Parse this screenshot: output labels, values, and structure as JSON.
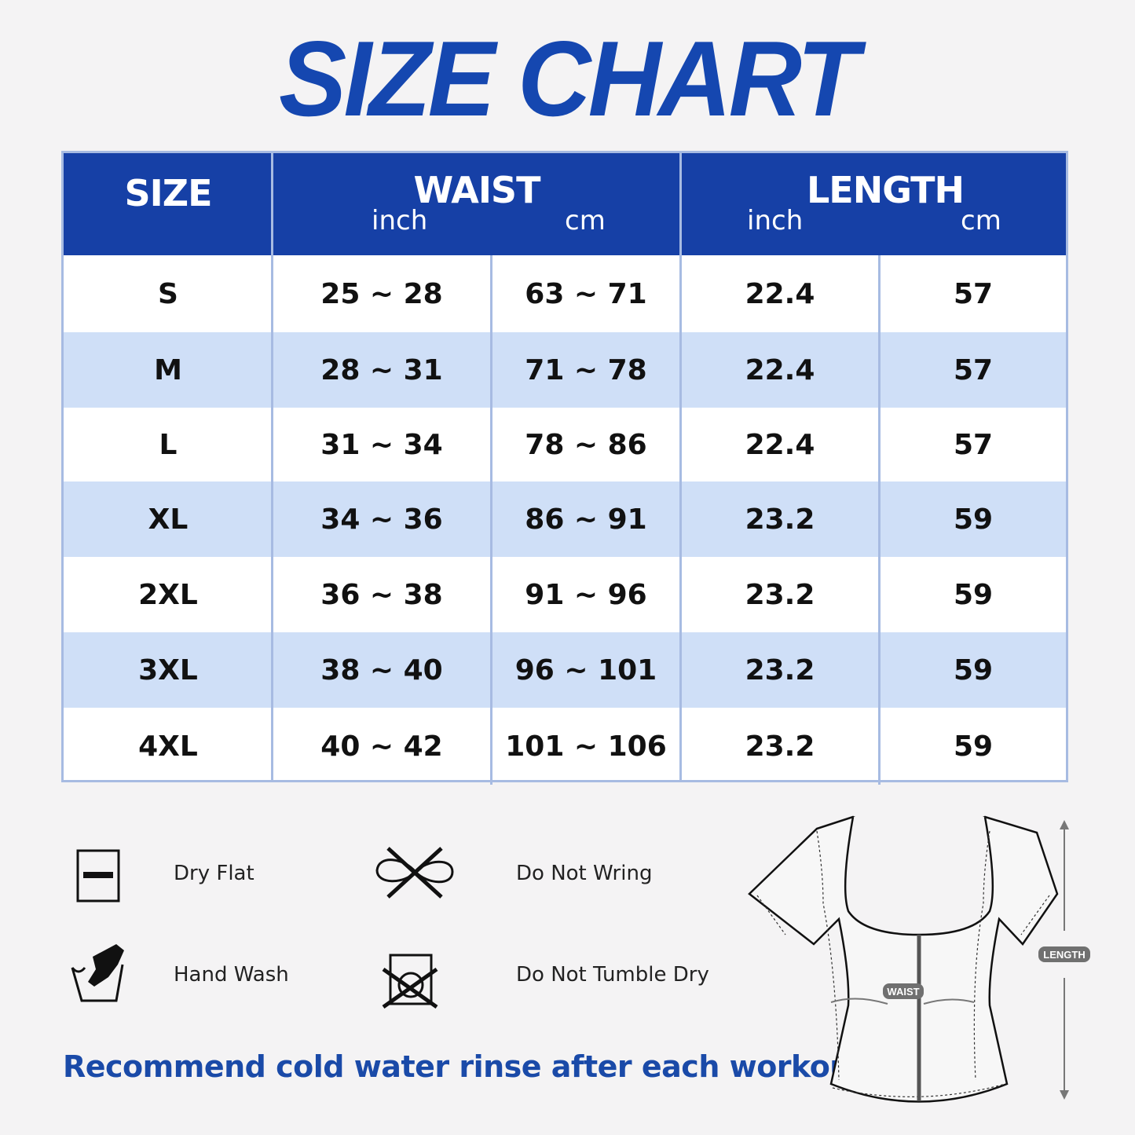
{
  "title": "SIZE CHART",
  "table": {
    "headers": {
      "size": "SIZE",
      "waist": "WAIST",
      "length": "LENGTH",
      "inch": "inch",
      "cm": "cm"
    },
    "rows": [
      {
        "size": "S",
        "waist_inch": "25 ~ 28",
        "waist_cm": "63 ~ 71",
        "length_inch": "22.4",
        "length_cm": "57"
      },
      {
        "size": "M",
        "waist_inch": "28 ~ 31",
        "waist_cm": "71 ~ 78",
        "length_inch": "22.4",
        "length_cm": "57"
      },
      {
        "size": "L",
        "waist_inch": "31 ~ 34",
        "waist_cm": "78 ~ 86",
        "length_inch": "22.4",
        "length_cm": "57"
      },
      {
        "size": "XL",
        "waist_inch": "34 ~ 36",
        "waist_cm": "86 ~ 91",
        "length_inch": "23.2",
        "length_cm": "59"
      },
      {
        "size": "2XL",
        "waist_inch": "36 ~ 38",
        "waist_cm": "91 ~ 96",
        "length_inch": "23.2",
        "length_cm": "59"
      },
      {
        "size": "3XL",
        "waist_inch": "38 ~ 40",
        "waist_cm": "96 ~ 101",
        "length_inch": "23.2",
        "length_cm": "59"
      },
      {
        "size": "4XL",
        "waist_inch": "40 ~ 42",
        "waist_cm": "101 ~ 106",
        "length_inch": "23.2",
        "length_cm": "59"
      }
    ]
  },
  "care": [
    {
      "label": "Dry Flat",
      "icon": "dry-flat-icon"
    },
    {
      "label": "Do Not Wring",
      "icon": "do-not-wring-icon"
    },
    {
      "label": "Hand Wash",
      "icon": "hand-wash-icon"
    },
    {
      "label": "Do Not Tumble Dry",
      "icon": "do-not-tumble-dry-icon"
    }
  ],
  "recommendation": "Recommend cold water rinse after each workout.",
  "diagram": {
    "waist_label": "WAIST",
    "length_label": "LENGTH"
  },
  "colors": {
    "header": "#1640a6",
    "title": "#1547b0",
    "alt_row": "#cfdff7",
    "grid": "#a7bbe2"
  }
}
